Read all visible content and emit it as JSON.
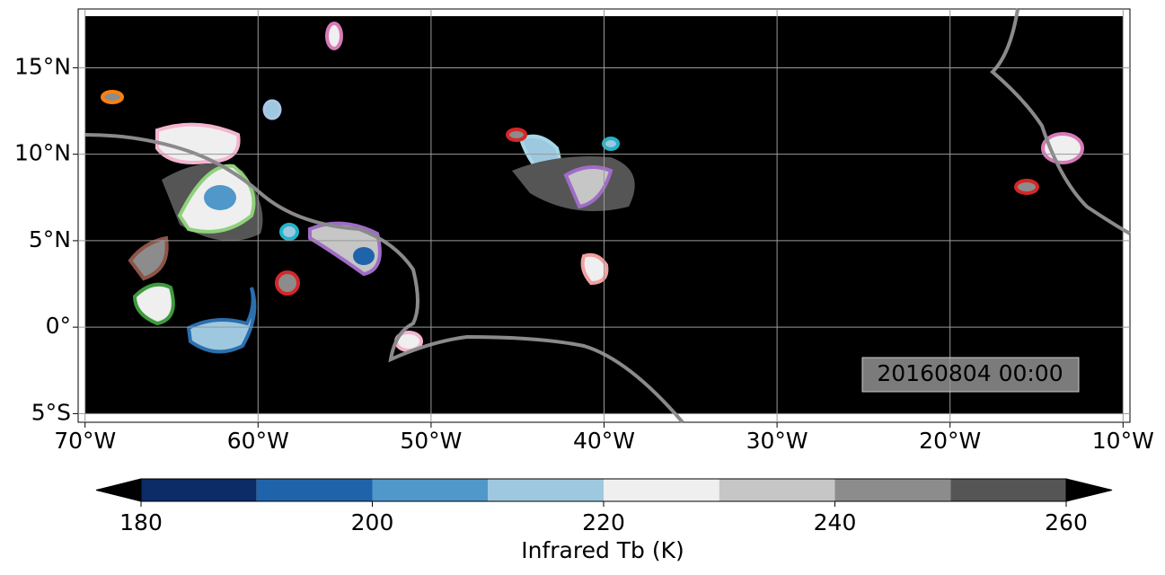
{
  "map": {
    "xlim": [
      -70.4,
      -9.6
    ],
    "ylim": [
      -5.5,
      18.4
    ],
    "xticks": [
      {
        "value": -70,
        "label": "70°W"
      },
      {
        "value": -60,
        "label": "60°W"
      },
      {
        "value": -50,
        "label": "50°W"
      },
      {
        "value": -40,
        "label": "40°W"
      },
      {
        "value": -30,
        "label": "30°W"
      },
      {
        "value": -20,
        "label": "20°W"
      },
      {
        "value": -10,
        "label": "10°W"
      }
    ],
    "yticks": [
      {
        "value": -5,
        "label": "5°S"
      },
      {
        "value": 0,
        "label": "0°"
      },
      {
        "value": 5,
        "label": "5°N"
      },
      {
        "value": 10,
        "label": "10°N"
      },
      {
        "value": 15,
        "label": "15°N"
      }
    ],
    "grid": true,
    "timestamp": "20160804 00:00"
  },
  "colorbar": {
    "label": "Infrared Tb (K)",
    "levels": [
      180,
      190,
      200,
      210,
      220,
      230,
      240,
      250,
      260
    ],
    "colors": [
      "#0b2c66",
      "#1f63ab",
      "#4f98c9",
      "#9ec8df",
      "#efefef",
      "#c6c6c6",
      "#8c8c8c",
      "#555555"
    ],
    "ticks": [
      180,
      200,
      220,
      240,
      260
    ]
  }
}
